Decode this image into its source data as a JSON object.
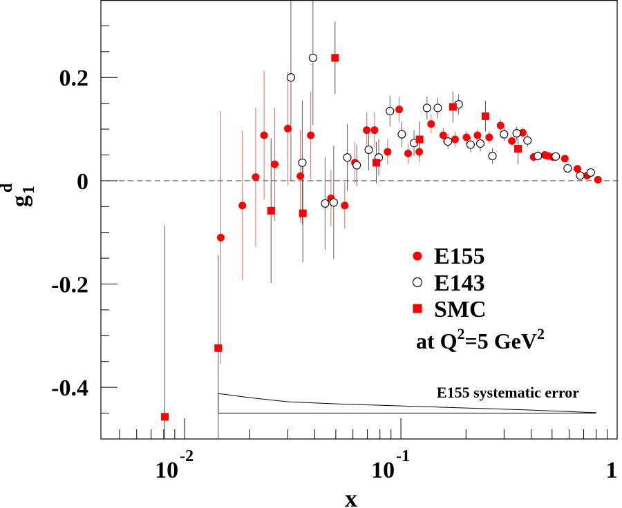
{
  "chart_data": {
    "type": "scatter",
    "title": "",
    "xlabel": "x",
    "ylabel": {
      "main": "g",
      "sub": "1",
      "sup": "d"
    },
    "x_scale": "log",
    "xlim": [
      0.0041,
      1.0
    ],
    "ylim": [
      -0.5,
      0.35
    ],
    "x_ticks": [
      {
        "value": 0.01,
        "base": "10",
        "exp": "-2"
      },
      {
        "value": 0.1,
        "base": "10",
        "exp": "-1"
      },
      {
        "value": 1,
        "base": "1",
        "exp": ""
      }
    ],
    "y_ticks": [
      {
        "value": 0.2,
        "label": "0.2"
      },
      {
        "value": 0,
        "label": "0"
      },
      {
        "value": -0.2,
        "label": "-0.2"
      },
      {
        "value": -0.4,
        "label": "-0.4"
      }
    ],
    "zero_line": true,
    "legend": {
      "placement": "right-middle",
      "entries": [
        {
          "label": "E155",
          "marker": "filled-circle",
          "color": "#ff0000"
        },
        {
          "label": "E143",
          "marker": "open-circle",
          "color": "#000000"
        },
        {
          "label": "SMC",
          "marker": "filled-square",
          "color": "#ff0000"
        }
      ],
      "note": {
        "prefix": "at Q",
        "sup1": "2",
        "middle": "=5 GeV",
        "sup2": "2"
      }
    },
    "annotation": "E155  systematic error",
    "series": [
      {
        "name": "E155",
        "marker": "filled-circle",
        "color": "#ff0000",
        "errcolor": "#ff6060",
        "points": [
          {
            "x": 0.0147,
            "y": -0.11,
            "err": 0.245
          },
          {
            "x": 0.0185,
            "y": -0.048,
            "err": 0.145
          },
          {
            "x": 0.0213,
            "y": 0.007,
            "err": 0.135
          },
          {
            "x": 0.0233,
            "y": 0.088,
            "err": 0.125
          },
          {
            "x": 0.0261,
            "y": 0.032,
            "err": 0.11
          },
          {
            "x": 0.03,
            "y": 0.101,
            "err": 0.11
          },
          {
            "x": 0.0343,
            "y": 0.009,
            "err": 0.09
          },
          {
            "x": 0.0383,
            "y": 0.088,
            "err": 0.085
          },
          {
            "x": 0.0475,
            "y": -0.034,
            "err": 0.055
          },
          {
            "x": 0.055,
            "y": -0.048,
            "err": 0.045
          },
          {
            "x": 0.0613,
            "y": 0.035,
            "err": 0.04
          },
          {
            "x": 0.0695,
            "y": 0.098,
            "err": 0.035
          },
          {
            "x": 0.0755,
            "y": 0.098,
            "err": 0.035
          },
          {
            "x": 0.0868,
            "y": 0.056,
            "err": 0.025
          },
          {
            "x": 0.0982,
            "y": 0.138,
            "err": 0.025
          },
          {
            "x": 0.108,
            "y": 0.053,
            "err": 0.02
          },
          {
            "x": 0.1216,
            "y": 0.056,
            "err": 0.02
          },
          {
            "x": 0.138,
            "y": 0.11,
            "err": 0.018
          },
          {
            "x": 0.157,
            "y": 0.088,
            "err": 0.015
          },
          {
            "x": 0.178,
            "y": 0.08,
            "err": 0.015
          },
          {
            "x": 0.201,
            "y": 0.084,
            "err": 0.013
          },
          {
            "x": 0.226,
            "y": 0.088,
            "err": 0.012
          },
          {
            "x": 0.256,
            "y": 0.084,
            "err": 0.012
          },
          {
            "x": 0.289,
            "y": 0.107,
            "err": 0.012
          },
          {
            "x": 0.326,
            "y": 0.077,
            "err": 0.01
          },
          {
            "x": 0.366,
            "y": 0.093,
            "err": 0.01
          },
          {
            "x": 0.411,
            "y": 0.046,
            "err": 0.008
          },
          {
            "x": 0.463,
            "y": 0.05,
            "err": 0.008
          },
          {
            "x": 0.48,
            "y": 0.048,
            "err": 0.007
          },
          {
            "x": 0.505,
            "y": 0.046,
            "err": 0.006
          },
          {
            "x": 0.573,
            "y": 0.043,
            "err": 0.005
          },
          {
            "x": 0.655,
            "y": 0.023,
            "err": 0.004
          },
          {
            "x": 0.726,
            "y": 0.01,
            "err": 0.003
          },
          {
            "x": 0.815,
            "y": 0.002,
            "err": 0.002
          }
        ]
      },
      {
        "name": "E143",
        "marker": "open-circle",
        "color": "#000000",
        "errcolor": "#606060",
        "points": [
          {
            "x": 0.031,
            "y": 0.2,
            "err": 0.2
          },
          {
            "x": 0.035,
            "y": 0.035,
            "err": 0.12
          },
          {
            "x": 0.0392,
            "y": 0.238,
            "err": 0.13
          },
          {
            "x": 0.0446,
            "y": -0.044,
            "err": 0.09
          },
          {
            "x": 0.0489,
            "y": -0.042,
            "err": 0.11
          },
          {
            "x": 0.0565,
            "y": 0.045,
            "err": 0.065
          },
          {
            "x": 0.0625,
            "y": 0.03,
            "err": 0.04
          },
          {
            "x": 0.071,
            "y": 0.06,
            "err": 0.04
          },
          {
            "x": 0.079,
            "y": 0.045,
            "err": 0.035
          },
          {
            "x": 0.089,
            "y": 0.135,
            "err": 0.03
          },
          {
            "x": 0.101,
            "y": 0.09,
            "err": 0.025
          },
          {
            "x": 0.115,
            "y": 0.073,
            "err": 0.025
          },
          {
            "x": 0.132,
            "y": 0.141,
            "err": 0.022
          },
          {
            "x": 0.148,
            "y": 0.141,
            "err": 0.02
          },
          {
            "x": 0.165,
            "y": 0.076,
            "err": 0.015
          },
          {
            "x": 0.185,
            "y": 0.148,
            "err": 0.02
          },
          {
            "x": 0.21,
            "y": 0.07,
            "err": 0.015
          },
          {
            "x": 0.233,
            "y": 0.072,
            "err": 0.015
          },
          {
            "x": 0.265,
            "y": 0.048,
            "err": 0.015
          },
          {
            "x": 0.3,
            "y": 0.09,
            "err": 0.013
          },
          {
            "x": 0.343,
            "y": 0.092,
            "err": 0.013
          },
          {
            "x": 0.385,
            "y": 0.078,
            "err": 0.012
          },
          {
            "x": 0.43,
            "y": 0.048,
            "err": 0.01
          },
          {
            "x": 0.52,
            "y": 0.047,
            "err": 0.008
          },
          {
            "x": 0.59,
            "y": 0.024,
            "err": 0.006
          },
          {
            "x": 0.675,
            "y": 0.01,
            "err": 0.005
          },
          {
            "x": 0.755,
            "y": 0.016,
            "err": 0.004
          }
        ]
      },
      {
        "name": "SMC",
        "marker": "filled-square",
        "color": "#ff0000",
        "errcolor": "#505050",
        "points": [
          {
            "x": 0.0081,
            "y": -0.457,
            "err": 0.37
          },
          {
            "x": 0.0143,
            "y": -0.324,
            "err": 0.18
          },
          {
            "x": 0.0251,
            "y": -0.058,
            "err": 0.14
          },
          {
            "x": 0.0352,
            "y": -0.063,
            "err": 0.095
          },
          {
            "x": 0.0496,
            "y": 0.238,
            "err": 0.07
          },
          {
            "x": 0.077,
            "y": 0.035,
            "err": 0.04
          },
          {
            "x": 0.122,
            "y": 0.08,
            "err": 0.035
          },
          {
            "x": 0.174,
            "y": 0.143,
            "err": 0.03
          },
          {
            "x": 0.246,
            "y": 0.125,
            "err": 0.03
          },
          {
            "x": 0.348,
            "y": 0.062,
            "err": 0.03
          }
        ]
      }
    ],
    "systematic_band": {
      "baseline": -0.45,
      "x": [
        0.0143,
        0.02,
        0.03,
        0.05,
        0.1,
        0.2,
        0.4,
        0.6,
        0.8
      ],
      "upper": [
        -0.412,
        -0.42,
        -0.428,
        -0.432,
        -0.436,
        -0.44,
        -0.444,
        -0.447,
        -0.449
      ]
    }
  }
}
